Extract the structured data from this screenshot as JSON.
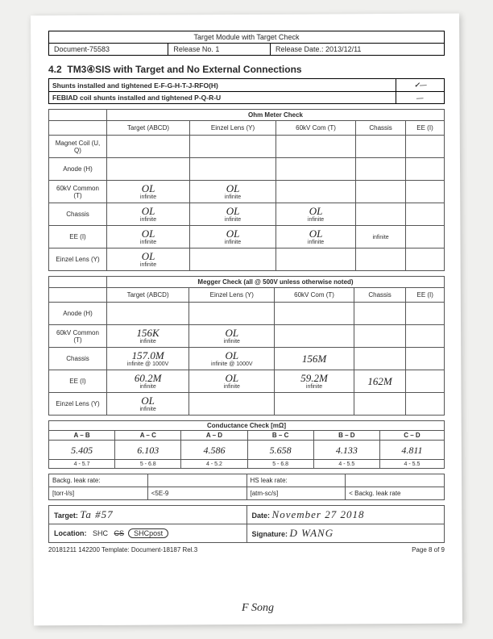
{
  "header": {
    "title": "Target Module with Target Check",
    "doc": "Document-75583",
    "release": "Release No. 1",
    "reldate": "Release Date.: 2013/12/11"
  },
  "section": {
    "num": "4.2",
    "title": "TM3④SIS with Target and No External Connections"
  },
  "shunts": {
    "row1": "Shunts installed and tightened E-F-G-H-T-J-RFO(H)",
    "row2": "FEBIAD coil shunts installed and tightened P-Q-R-U",
    "mark1": "✓—",
    "mark2": "—"
  },
  "ohm": {
    "header": "Ohm Meter Check",
    "cols": [
      "Target (ABCD)",
      "Einzel Lens (Y)",
      "60kV Com (T)",
      "Chassis",
      "EE (I)"
    ],
    "rows": [
      {
        "label": "Magnet Coil (U, Q)",
        "cells": [
          {
            "g": 1
          },
          {
            "g": 1
          },
          {
            "g": 1
          },
          {
            "g": 1
          },
          {
            "g": 1
          }
        ]
      },
      {
        "label": "Anode (H)",
        "cells": [
          {
            "g": 1
          },
          {
            "g": 1
          },
          {
            "g": 1
          },
          {
            "g": 1
          },
          {
            "g": 1
          }
        ]
      },
      {
        "label": "60kV Common (T)",
        "cells": [
          {
            "v": "OL",
            "s": "infinite"
          },
          {
            "v": "OL",
            "s": "infinite"
          },
          {
            "g": 1
          },
          {
            "g": 1
          },
          {
            "g": 1
          }
        ]
      },
      {
        "label": "Chassis",
        "cells": [
          {
            "v": "OL",
            "s": "infinite"
          },
          {
            "v": "OL",
            "s": "infinite"
          },
          {
            "v": "OL",
            "s": "infinite"
          },
          {
            "g": 1
          },
          {
            "g": 1
          }
        ]
      },
      {
        "label": "EE (I)",
        "cells": [
          {
            "v": "OL",
            "s": "infinite"
          },
          {
            "v": "OL",
            "s": "infinite"
          },
          {
            "v": "OL",
            "s": "infinite"
          },
          {
            "v": "",
            "s": "infinite"
          },
          {
            "g": 1
          }
        ]
      },
      {
        "label": "Einzel Lens (Y)",
        "cells": [
          {
            "v": "OL",
            "s": "infinite"
          },
          {
            "g": 1
          },
          {
            "g": 1
          },
          {
            "g": 1
          },
          {
            "g": 1
          }
        ]
      }
    ]
  },
  "megger": {
    "header": "Megger Check (all @ 500V unless otherwise noted)",
    "cols": [
      "Target (ABCD)",
      "Einzel Lens (Y)",
      "60kV Com (T)",
      "Chassis",
      "EE (I)"
    ],
    "rows": [
      {
        "label": "Anode (H)",
        "cells": [
          {
            "g": 1
          },
          {
            "g": 1
          },
          {
            "g": 1
          },
          {
            "g": 1
          },
          {
            "g": 1
          }
        ]
      },
      {
        "label": "60kV Common (T)",
        "cells": [
          {
            "v": "156K",
            "s": "infinite"
          },
          {
            "v": "OL",
            "s": "infinite"
          },
          {
            "g": 1
          },
          {
            "g": 1
          },
          {
            "g": 1
          }
        ]
      },
      {
        "label": "Chassis",
        "cells": [
          {
            "v": "157.0M",
            "s": "infinite @ 1000V"
          },
          {
            "v": "OL",
            "s": "infinite @ 1000V"
          },
          {
            "v": "156M",
            "s": ""
          },
          {
            "g": 1
          },
          {
            "g": 1
          }
        ]
      },
      {
        "label": "EE (I)",
        "cells": [
          {
            "v": "60.2M",
            "s": "infinite"
          },
          {
            "v": "OL",
            "s": "infinite"
          },
          {
            "v": "59.2M",
            "s": "infinite"
          },
          {
            "v": "162M",
            "s": ""
          },
          {
            "g": 1
          }
        ]
      },
      {
        "label": "Einzel Lens (Y)",
        "cells": [
          {
            "v": "OL",
            "s": "infinite"
          },
          {
            "g": 1
          },
          {
            "g": 1
          },
          {
            "g": 1
          },
          {
            "g": 1
          }
        ]
      }
    ]
  },
  "cond": {
    "header": "Conductance Check [mΩ]",
    "cols": [
      "A – B",
      "A – C",
      "A – D",
      "B – C",
      "B – D",
      "C – D"
    ],
    "vals": [
      "5.405",
      "6.103",
      "4.586",
      "5.658",
      "4.133",
      "4.811"
    ],
    "subs": [
      "4 - 5.7",
      "5 - 6.8",
      "4 - 5.2",
      "5 - 6.8",
      "4 - 5.5",
      "4 - 5.5"
    ]
  },
  "leak": {
    "bkg_label": "Backg. leak rate:",
    "hs_label": "HS leak rate:",
    "torr_label": "[torr-l/s]",
    "lt": "<5E-9",
    "atm_label": "[atm-sc/s]",
    "bg_sub": "< Backg. leak rate"
  },
  "sig": {
    "target_label": "Target:",
    "target_val": "Ta #57",
    "date_label": "Date:",
    "date_val": "November 27 2018",
    "loc_label": "Location:",
    "loc_shc": "SHC",
    "loc_cs": "CS",
    "loc_post": "SHCpost",
    "sig_label": "Signature:",
    "sig_val": "D WANG"
  },
  "footer": {
    "left": "20181211 142200 Template: Document-18187 Rel.3",
    "right": "Page 8 of 9",
    "extra_sig": "F Song"
  }
}
